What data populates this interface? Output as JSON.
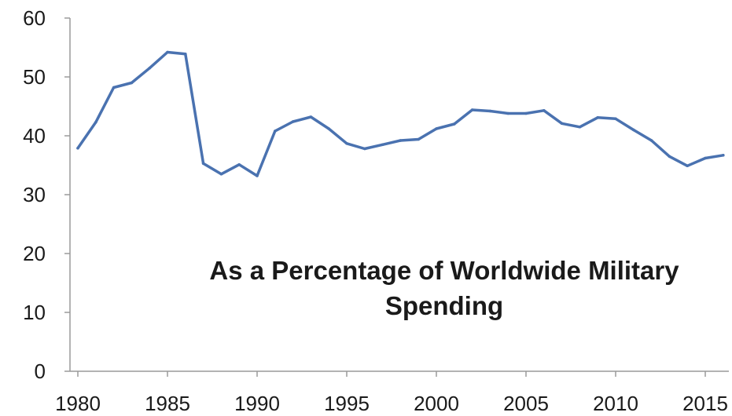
{
  "chart_data": {
    "type": "line",
    "title": "",
    "xlabel": "",
    "ylabel": "",
    "annotation": [
      "As a Percentage of Worldwide Military",
      "Spending"
    ],
    "xlim": [
      1980,
      2016.5
    ],
    "ylim": [
      0,
      60
    ],
    "x_ticks": [
      1980,
      1985,
      1990,
      1995,
      2000,
      2005,
      2010,
      2015
    ],
    "y_ticks": [
      0,
      10,
      20,
      30,
      40,
      50,
      60
    ],
    "grid": false,
    "legend": "none",
    "colors": {
      "line": "#4a72b0",
      "axis": "#9a9a9a",
      "text": "#1a1a1a"
    },
    "series": [
      {
        "x": [
          1980,
          1981,
          1982,
          1983,
          1984,
          1985,
          1986,
          1987,
          1988,
          1989,
          1990,
          1991,
          1992,
          1993,
          1994,
          1995,
          1996,
          1997,
          1998,
          1999,
          2000,
          2001,
          2002,
          2003,
          2004,
          2005,
          2006,
          2007,
          2008,
          2009,
          2010,
          2011,
          2012,
          2013,
          2014,
          2015,
          2016
        ],
        "values": [
          37.9,
          42.3,
          48.2,
          49.0,
          51.5,
          54.2,
          53.9,
          35.3,
          33.5,
          35.1,
          33.2,
          40.8,
          42.4,
          43.2,
          41.2,
          38.7,
          37.8,
          38.5,
          39.2,
          39.4,
          41.2,
          42.0,
          44.4,
          44.2,
          43.8,
          43.8,
          44.3,
          42.1,
          41.5,
          43.1,
          42.9,
          41.0,
          39.2,
          36.5,
          34.9,
          36.2,
          36.7
        ]
      }
    ]
  }
}
